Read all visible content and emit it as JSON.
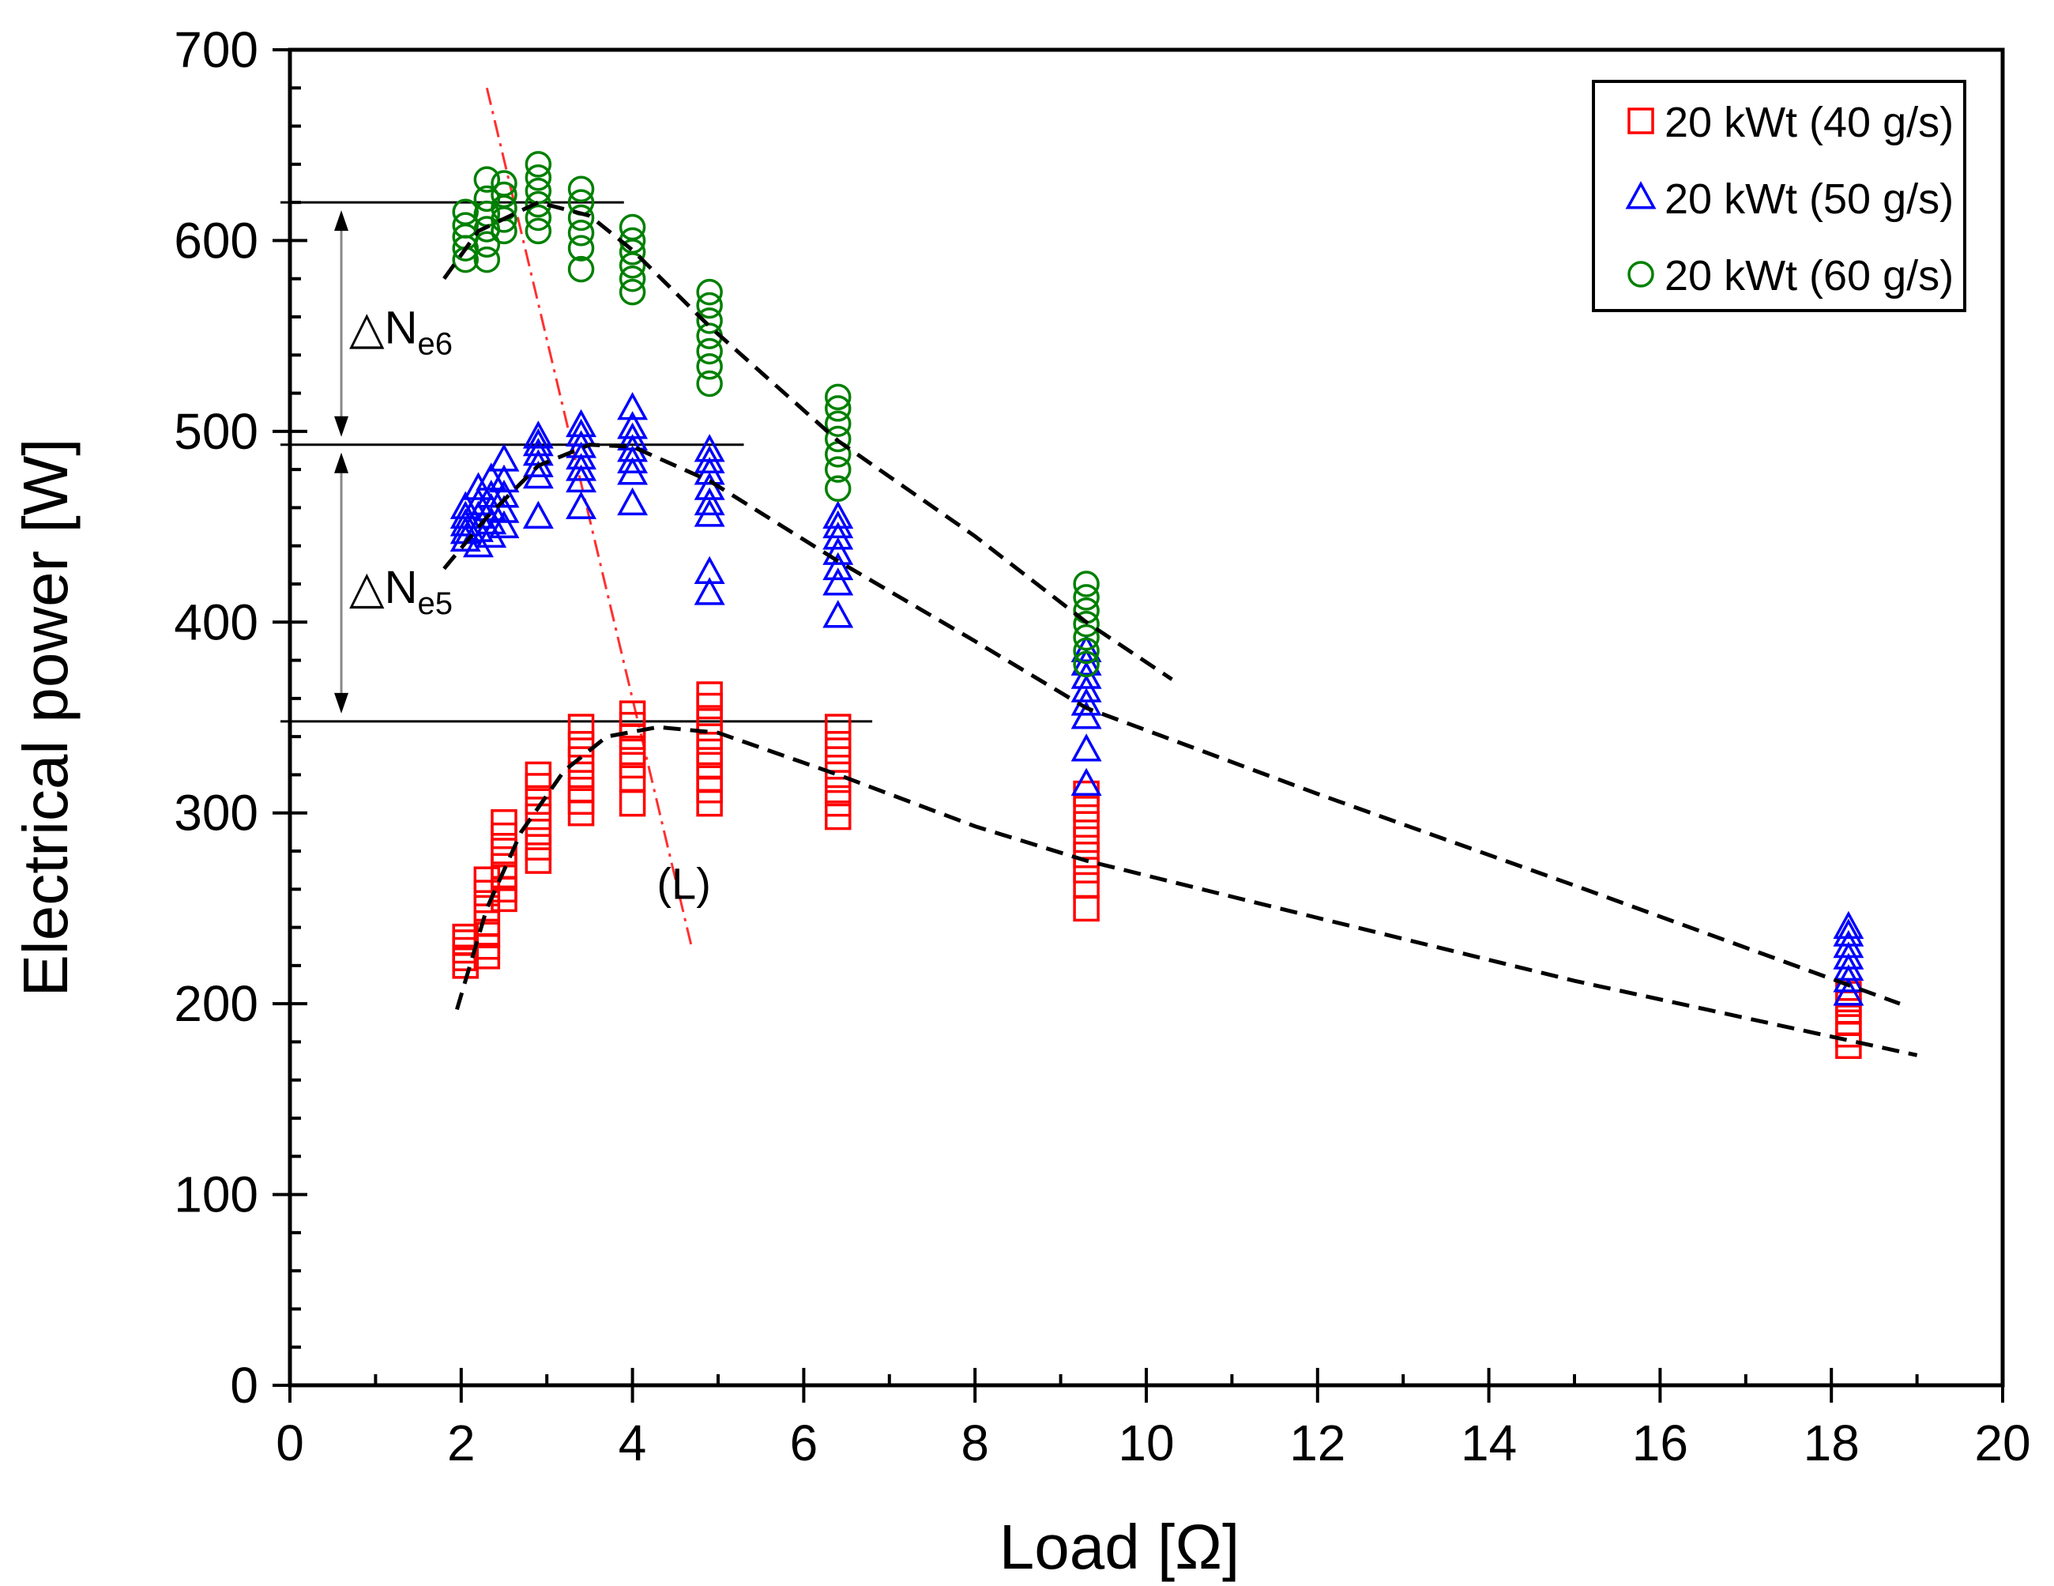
{
  "chart_data": {
    "type": "scatter",
    "xlabel": "Load [Ω]",
    "ylabel": "Electrical power [W]",
    "xlim": [
      0,
      20
    ],
    "ylim": [
      0,
      700
    ],
    "xticks": [
      0,
      2,
      4,
      6,
      8,
      10,
      12,
      14,
      16,
      18,
      20
    ],
    "yticks": [
      0,
      100,
      200,
      300,
      400,
      500,
      600,
      700
    ],
    "legend_position": "top-right",
    "series": [
      {
        "name": "20 kWt (40 g/s)",
        "marker": "square",
        "color": "#ff0000",
        "groups": [
          {
            "x": 2.05,
            "y": [
              220,
              224,
              228,
              232,
              235
            ]
          },
          {
            "x": 2.3,
            "y": [
              225,
              230,
              236,
              242,
              250,
              258,
              265
            ]
          },
          {
            "x": 2.5,
            "y": [
              255,
              260,
              266,
              272,
              280,
              288,
              295
            ]
          },
          {
            "x": 2.9,
            "y": [
              275,
              282,
              290,
              298,
              306,
              314,
              320
            ]
          },
          {
            "x": 3.4,
            "y": [
              300,
              306,
              312,
              320,
              328,
              336,
              345
            ]
          },
          {
            "x": 4.0,
            "y": [
              305,
              318,
              325,
              332,
              340,
              346,
              352
            ]
          },
          {
            "x": 4.9,
            "y": [
              305,
              312,
              318,
              325,
              332,
              340,
              348,
              356,
              362
            ]
          },
          {
            "x": 6.4,
            "y": [
              298,
              305,
              312,
              320,
              328,
              336,
              345
            ]
          },
          {
            "x": 9.3,
            "y": [
              250,
              262,
              270,
              278,
              286,
              294,
              302,
              310
            ]
          },
          {
            "x": 18.2,
            "y": [
              178,
              184,
              190,
              196,
              200,
              205
            ]
          }
        ]
      },
      {
        "name": "20 kWt (50 g/s)",
        "marker": "triangle",
        "color": "#0000ff",
        "groups": [
          {
            "x": 2.05,
            "y": [
              443,
              447,
              451,
              455,
              460
            ]
          },
          {
            "x": 2.2,
            "y": [
              440,
              448,
              455,
              462,
              470
            ]
          },
          {
            "x": 2.35,
            "y": [
              445,
              452,
              459,
              466,
              475
            ]
          },
          {
            "x": 2.5,
            "y": [
              450,
              458,
              466,
              474,
              485
            ]
          },
          {
            "x": 2.9,
            "y": [
              455,
              476,
              482,
              488,
              493,
              497
            ]
          },
          {
            "x": 3.4,
            "y": [
              460,
              474,
              480,
              486,
              492,
              498,
              503
            ]
          },
          {
            "x": 4.0,
            "y": [
              462,
              478,
              484,
              490,
              496,
              502,
              512
            ]
          },
          {
            "x": 4.9,
            "y": [
              415,
              426,
              456,
              462,
              470,
              478,
              484,
              490
            ]
          },
          {
            "x": 6.4,
            "y": [
              403,
              420,
              428,
              436,
              444,
              450,
              455
            ]
          },
          {
            "x": 9.3,
            "y": [
              315,
              333,
              350,
              357,
              364,
              371,
              378,
              385
            ]
          },
          {
            "x": 18.2,
            "y": [
              205,
              212,
              218,
              224,
              230,
              236,
              240
            ]
          }
        ]
      },
      {
        "name": "20 kWt (60 g/s)",
        "marker": "circle",
        "color": "#008000",
        "groups": [
          {
            "x": 2.05,
            "y": [
              590,
              596,
              602,
              608,
              615
            ]
          },
          {
            "x": 2.3,
            "y": [
              590,
              598,
              606,
              614,
              622,
              632
            ]
          },
          {
            "x": 2.5,
            "y": [
              605,
              611,
              617,
              624,
              630
            ]
          },
          {
            "x": 2.9,
            "y": [
              605,
              612,
              619,
              626,
              633,
              640
            ]
          },
          {
            "x": 3.4,
            "y": [
              585,
              596,
              604,
              612,
              620,
              627
            ]
          },
          {
            "x": 4.0,
            "y": [
              573,
              580,
              587,
              594,
              600,
              607
            ]
          },
          {
            "x": 4.9,
            "y": [
              525,
              534,
              542,
              550,
              558,
              566,
              573
            ]
          },
          {
            "x": 6.4,
            "y": [
              470,
              480,
              488,
              496,
              504,
              512,
              518
            ]
          },
          {
            "x": 9.3,
            "y": [
              378,
              385,
              392,
              399,
              406,
              413,
              420
            ]
          }
        ]
      }
    ],
    "fit_curves": [
      {
        "series": "20 kWt (40 g/s)",
        "points": [
          [
            1.95,
            197
          ],
          [
            2.3,
            250
          ],
          [
            2.7,
            290
          ],
          [
            3.2,
            322
          ],
          [
            3.7,
            340
          ],
          [
            4.3,
            345
          ],
          [
            5,
            342
          ],
          [
            6.4,
            320
          ],
          [
            8,
            293
          ],
          [
            9.3,
            275
          ],
          [
            12,
            245
          ],
          [
            15,
            212
          ],
          [
            19,
            173
          ]
        ]
      },
      {
        "series": "20 kWt (50 g/s)",
        "points": [
          [
            1.8,
            428
          ],
          [
            2.3,
            455
          ],
          [
            2.9,
            482
          ],
          [
            3.5,
            493
          ],
          [
            4,
            492
          ],
          [
            4.9,
            474
          ],
          [
            6.4,
            432
          ],
          [
            8,
            390
          ],
          [
            9.3,
            355
          ],
          [
            12,
            310
          ],
          [
            15,
            262
          ],
          [
            18.8,
            200
          ]
        ]
      },
      {
        "series": "20 kWt (60 g/s)",
        "points": [
          [
            1.8,
            580
          ],
          [
            2.2,
            605
          ],
          [
            2.9,
            620
          ],
          [
            3.5,
            613
          ],
          [
            4,
            595
          ],
          [
            4.9,
            555
          ],
          [
            6.4,
            495
          ],
          [
            8,
            445
          ],
          [
            9.3,
            400
          ],
          [
            10.3,
            370
          ]
        ]
      }
    ],
    "reference_lines": [
      {
        "y": 620,
        "x_end": 3.9
      },
      {
        "y": 493,
        "x_end": 5.3
      },
      {
        "y": 348,
        "x_end": 6.8
      }
    ],
    "line_L": {
      "label": "(L)",
      "points": [
        [
          2.3,
          680
        ],
        [
          4.7,
          228
        ]
      ]
    },
    "annotations": [
      {
        "prefix": "△N",
        "sub": "e6",
        "from": 493,
        "to": 620
      },
      {
        "prefix": "△N",
        "sub": "e5",
        "from": 348,
        "to": 493
      }
    ]
  }
}
